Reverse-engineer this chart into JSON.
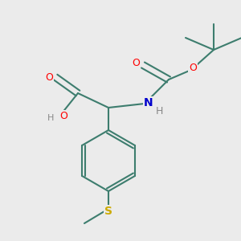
{
  "bg_color": "#ebebeb",
  "bond_color": "#3d7d6e",
  "atom_colors": {
    "O": "#ff0000",
    "N": "#0000cc",
    "H": "#888888",
    "S": "#ccaa00",
    "C_bond": "#3d7d6e"
  },
  "figsize": [
    3.0,
    3.0
  ],
  "dpi": 100
}
